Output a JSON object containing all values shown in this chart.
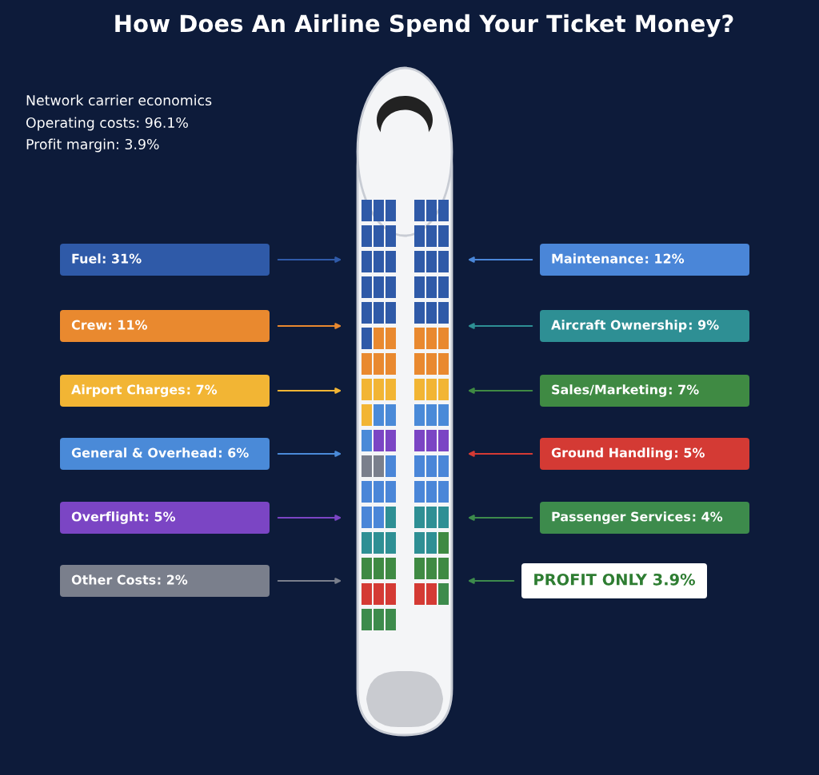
{
  "chart_data": {
    "type": "other",
    "title": "How Does An Airline Spend Your Ticket Money?",
    "subtitle": "Network carrier economics",
    "annotations": [
      "Operating costs: 96.1%",
      "Profit margin: 3.9%",
      "PROFIT ONLY 3.9%"
    ],
    "categories": [
      "Fuel",
      "Crew",
      "Airport Charges",
      "General & Overhead",
      "Overflight",
      "Other Costs",
      "Maintenance",
      "Aircraft Ownership",
      "Sales/Marketing",
      "Ground Handling",
      "Passenger Services"
    ],
    "values": [
      31,
      11,
      7,
      6,
      5,
      2,
      12,
      9,
      7,
      5,
      4
    ],
    "value_labels": [
      ": 31%",
      ": 11%",
      ": 7%",
      ": 6%",
      ": 5%",
      ": 2%",
      ": 12%",
      ": 9%",
      ": 7%",
      ": 5%",
      ": 4%"
    ],
    "colors": [
      "#2f5aa8",
      "#e9892f",
      "#f2b534",
      "#4a8ad8",
      "#7b45c4",
      "#7a7f8c",
      "#4a86d8",
      "#2e8f94",
      "#3f8a43",
      "#d43a34",
      "#3d8b4c"
    ]
  }
}
